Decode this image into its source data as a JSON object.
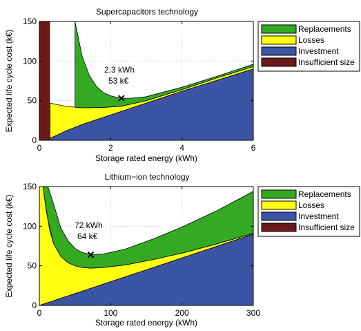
{
  "chart_data": [
    {
      "type": "area",
      "title": "Supercapacitors technology",
      "xlabel": "Storage rated energy (kWh)",
      "ylabel": "Expected life cycle cost (k€)",
      "xlim": [
        0,
        6
      ],
      "ylim": [
        0,
        150
      ],
      "x_ticks": [
        "0",
        "2",
        "4",
        "6"
      ],
      "y_ticks": [
        "0",
        "50",
        "100",
        "150"
      ],
      "grid": true,
      "legend_position": "outside-right",
      "legend": [
        "Replacements",
        "Losses",
        "Investment",
        "Insufficient size"
      ],
      "insufficient_size_max_x": 0.3,
      "series": [
        {
          "name": "Investment",
          "color": "#3b54a4",
          "x": [
            0.3,
            1,
            2,
            3,
            4,
            5,
            6
          ],
          "y": [
            2.5,
            17,
            32,
            47,
            62,
            76,
            90
          ]
        },
        {
          "name": "Losses",
          "color": "#ffff11",
          "x": [
            0.3,
            0.5,
            0.8,
            1.2,
            1.8,
            2.3,
            3,
            4,
            5,
            6
          ],
          "y": [
            47,
            45,
            42.5,
            41,
            41.5,
            43,
            50,
            64,
            79,
            93
          ]
        },
        {
          "name": "Replacements",
          "color": "#33aa22",
          "x": [
            1.0,
            1.2,
            1.4,
            1.6,
            1.8,
            2.0,
            2.3,
            2.6,
            3.0,
            3.5,
            4,
            5,
            6
          ],
          "y": [
            150,
            106,
            82,
            68,
            60,
            56,
            53,
            53.2,
            55,
            61,
            67,
            81,
            96
          ]
        },
        {
          "name": "Insufficient size",
          "color": "#6b1a1a",
          "x": [
            0,
            0.3
          ],
          "y": [
            150,
            150
          ]
        }
      ],
      "optimum": {
        "x": 2.3,
        "y": 53
      },
      "annotation": [
        "2.3 kWh",
        "53 k€"
      ]
    },
    {
      "type": "area",
      "title": "Lithium−ion technology",
      "xlabel": "Storage rated energy (kWh)",
      "ylabel": "Expected life cycle cost (k€)",
      "xlim": [
        0,
        300
      ],
      "ylim": [
        0,
        150
      ],
      "x_ticks": [
        "0",
        "100",
        "200",
        "300"
      ],
      "y_ticks": [
        "0",
        "50",
        "100",
        "150"
      ],
      "grid": true,
      "legend_position": "outside-right",
      "legend": [
        "Replacements",
        "Losses",
        "Investment",
        "Insufficient size"
      ],
      "series": [
        {
          "name": "Investment",
          "color": "#3b54a4",
          "x": [
            0,
            100,
            200,
            300
          ],
          "y": [
            0,
            30,
            60,
            90
          ]
        },
        {
          "name": "Losses",
          "color": "#ffff11",
          "x": [
            0,
            5,
            10,
            15,
            20,
            30,
            40,
            50,
            60,
            72,
            90,
            120,
            160,
            200,
            250,
            300
          ],
          "y": [
            150,
            150,
            118,
            93,
            78,
            62,
            54,
            50,
            48,
            47,
            48,
            51,
            58,
            66,
            78,
            91
          ]
        },
        {
          "name": "Replacements",
          "color": "#33aa22",
          "x": [
            5,
            12,
            20,
            30,
            40,
            50,
            60,
            72,
            90,
            120,
            160,
            200,
            250,
            300
          ],
          "y": [
            150,
            150,
            128,
            98,
            82,
            72,
            67,
            64,
            65,
            71,
            84,
            99,
            120,
            144
          ]
        },
        {
          "name": "Insufficient size",
          "color": "#6b1a1a",
          "x": [],
          "y": []
        }
      ],
      "optimum": {
        "x": 72,
        "y": 64
      },
      "annotation": [
        "72 kWh",
        "64 k€"
      ]
    }
  ]
}
